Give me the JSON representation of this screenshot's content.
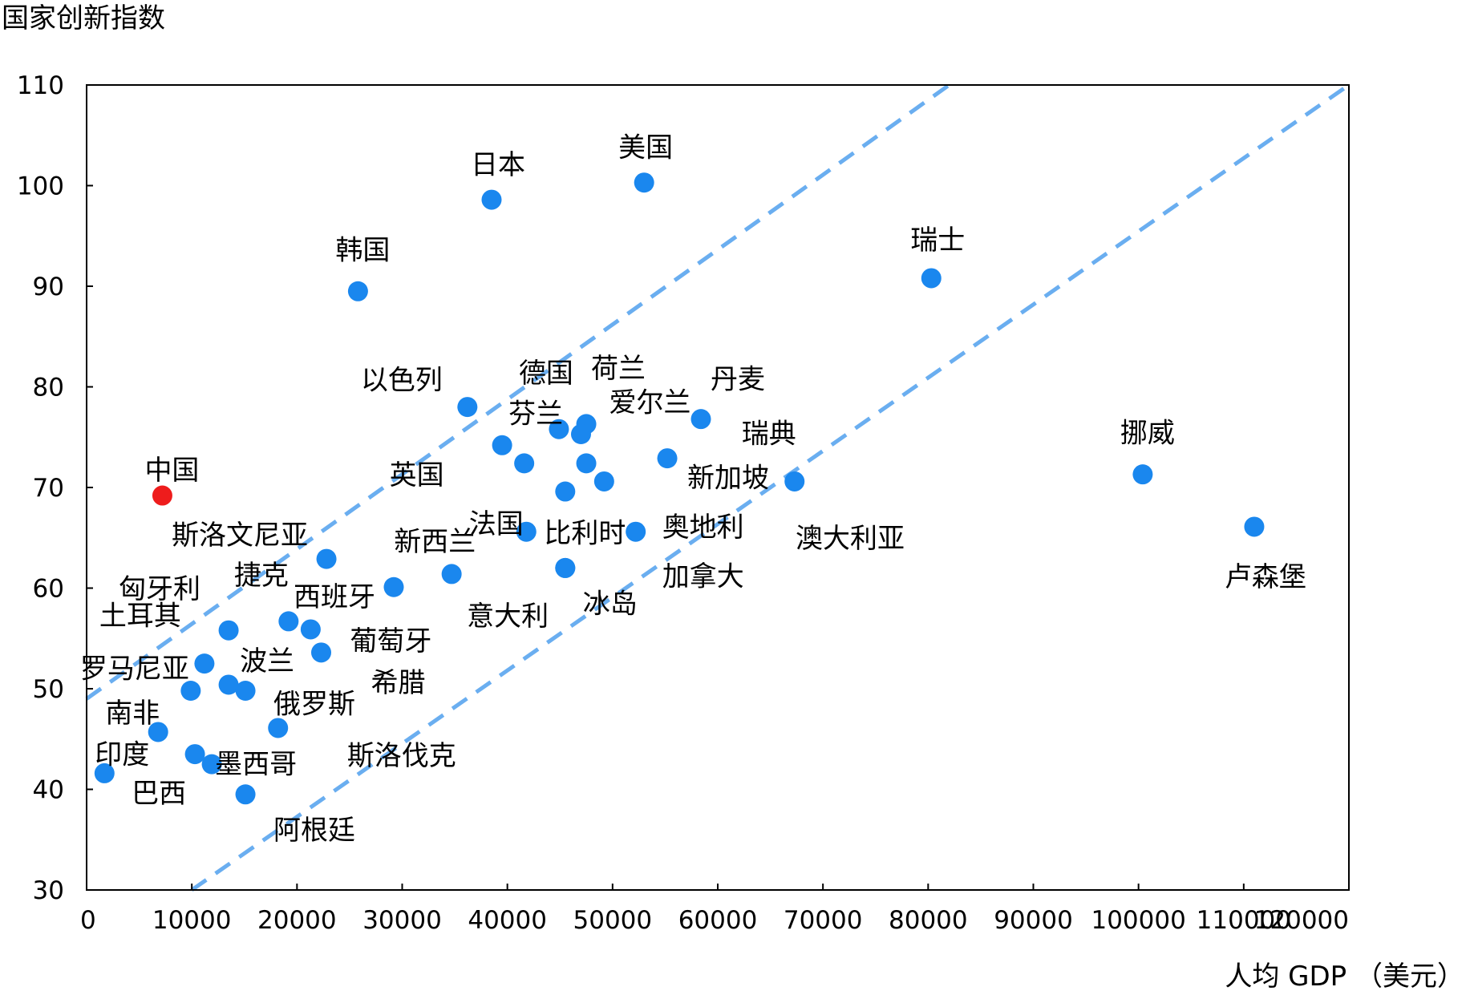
{
  "chart_data": {
    "type": "scatter",
    "ylabel": "国家创新指数",
    "xlabel": "人均 GDP （美元）",
    "xlim": [
      0,
      120000
    ],
    "ylim": [
      30,
      110
    ],
    "x_ticks": [
      "0",
      "10000",
      "20000",
      "30000",
      "40000",
      "50000",
      "60000",
      "70000",
      "80000",
      "90000",
      "100000",
      "110000",
      "120000"
    ],
    "y_ticks": [
      "30",
      "40",
      "50",
      "60",
      "70",
      "80",
      "90",
      "100",
      "110"
    ],
    "grid": false,
    "colors": {
      "point": "#1a87ee",
      "highlight": "#ee1c1c",
      "trend_line": "#6aaef0"
    },
    "trend_lines": [
      {
        "style": "dashed",
        "points": [
          [
            0,
            49
          ],
          [
            82000,
            110
          ]
        ]
      },
      {
        "style": "dashed",
        "points": [
          [
            10000,
            30
          ],
          [
            120000,
            110
          ]
        ]
      }
    ],
    "points": [
      {
        "name": "中国",
        "x": 7200,
        "y": 69.2,
        "highlight": true
      },
      {
        "name": "美国",
        "x": 53000,
        "y": 100.3
      },
      {
        "name": "日本",
        "x": 38500,
        "y": 98.6
      },
      {
        "name": "韩国",
        "x": 25800,
        "y": 89.5
      },
      {
        "name": "瑞士",
        "x": 80300,
        "y": 90.8
      },
      {
        "name": "挪威",
        "x": 100400,
        "y": 71.3
      },
      {
        "name": "卢森堡",
        "x": 111000,
        "y": 66.1
      },
      {
        "name": "以色列",
        "x": 36200,
        "y": 78.0
      },
      {
        "name": "德国",
        "x": 44900,
        "y": 75.8
      },
      {
        "name": "荷兰",
        "x": 47500,
        "y": 76.3
      },
      {
        "name": "芬兰",
        "x": 39500,
        "y": 74.2
      },
      {
        "name": "爱尔兰",
        "x": 47000,
        "y": 75.3
      },
      {
        "name": "丹麦",
        "x": 58400,
        "y": 76.8
      },
      {
        "name": "瑞典",
        "x": 67300,
        "y": 70.6
      },
      {
        "name": "新加坡",
        "x": 55200,
        "y": 72.9
      },
      {
        "name": "英国",
        "x": 41600,
        "y": 72.4
      },
      {
        "name": "法国",
        "x": 45500,
        "y": 69.6
      },
      {
        "name": "比利时",
        "x": 49200,
        "y": 70.6
      },
      {
        "name": "奥地利",
        "x": 52200,
        "y": 65.6
      },
      {
        "name": "澳大利亚",
        "x": 47500,
        "y": 72.4
      },
      {
        "name": "新西兰",
        "x": 41800,
        "y": 65.6
      },
      {
        "name": "加拿大",
        "x": 45500,
        "y": 62.0
      },
      {
        "name": "意大利",
        "x": 34700,
        "y": 61.4
      },
      {
        "name": "冰岛",
        "x": 45500,
        "y": 62.0
      },
      {
        "name": "斯洛文尼亚",
        "x": 22800,
        "y": 62.9
      },
      {
        "name": "西班牙",
        "x": 29200,
        "y": 60.1
      },
      {
        "name": "捷克",
        "x": 19200,
        "y": 56.7
      },
      {
        "name": "匈牙利",
        "x": 13500,
        "y": 55.8
      },
      {
        "name": "葡萄牙",
        "x": 21300,
        "y": 55.9
      },
      {
        "name": "土耳其",
        "x": 11200,
        "y": 52.5
      },
      {
        "name": "波兰",
        "x": 13500,
        "y": 50.4
      },
      {
        "name": "希腊",
        "x": 22300,
        "y": 53.6
      },
      {
        "name": "罗马尼亚",
        "x": 9900,
        "y": 49.8
      },
      {
        "name": "俄罗斯",
        "x": 15100,
        "y": 49.8
      },
      {
        "name": "南非",
        "x": 6800,
        "y": 45.7
      },
      {
        "name": "斯洛伐克",
        "x": 18200,
        "y": 46.1
      },
      {
        "name": "墨西哥",
        "x": 10300,
        "y": 43.5
      },
      {
        "name": "印度",
        "x": 1700,
        "y": 41.6
      },
      {
        "name": "巴西",
        "x": 11900,
        "y": 42.5
      },
      {
        "name": "阿根廷",
        "x": 15100,
        "y": 39.5
      }
    ]
  }
}
